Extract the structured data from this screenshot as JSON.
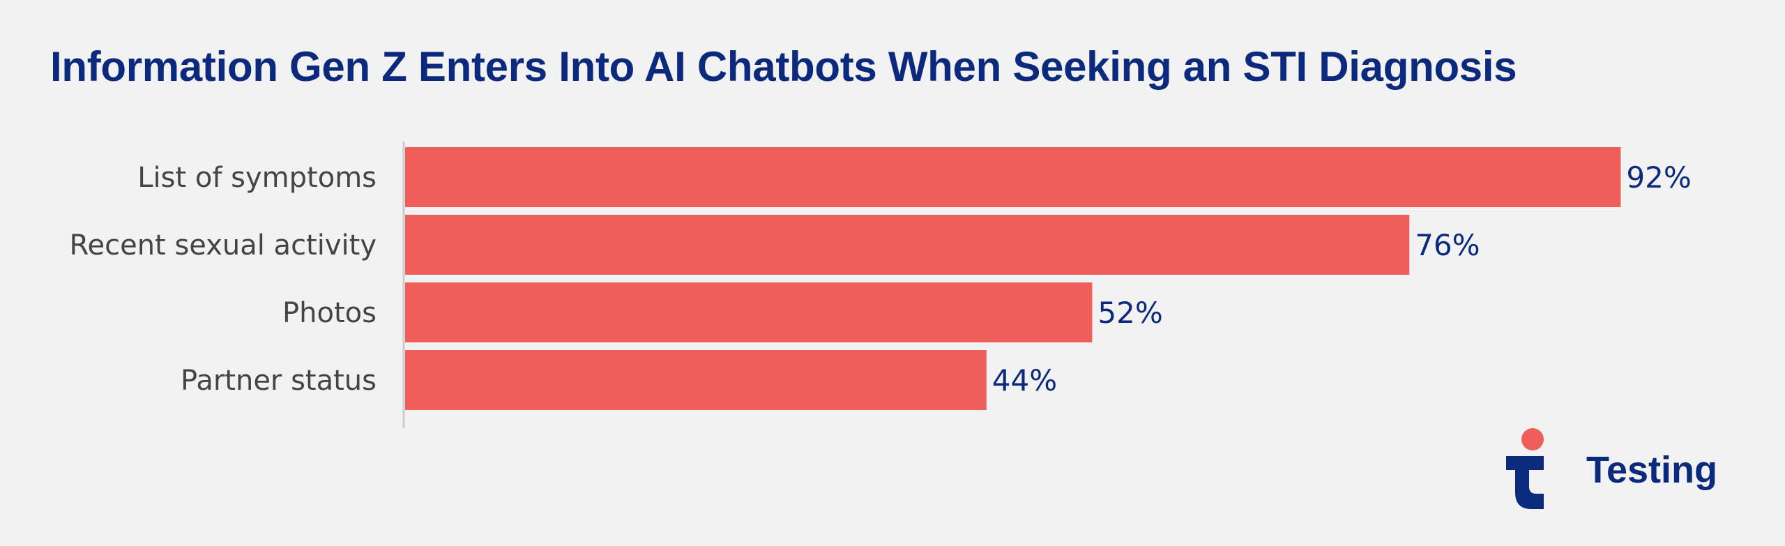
{
  "title": "Information Gen Z Enters Into AI Chatbots When Seeking an STI Diagnosis",
  "brand": {
    "name": "Testing",
    "icon": "testing-logo-icon"
  },
  "colors": {
    "background": "#f2f2f2",
    "bar": "#f05e5b",
    "title": "#0b2a7e",
    "value_label": "#0b2a7e",
    "category_label": "#444444",
    "axis": "#cccccc"
  },
  "chart_data": {
    "type": "bar",
    "orientation": "horizontal",
    "title": "Information Gen Z Enters Into AI Chatbots When Seeking an STI Diagnosis",
    "categories": [
      "List of symptoms",
      "Recent sexual activity",
      "Photos",
      "Partner status"
    ],
    "values": [
      92,
      76,
      52,
      44
    ],
    "value_labels": [
      "92%",
      "76%",
      "52%",
      "44%"
    ],
    "unit": "%",
    "xlabel": "",
    "ylabel": "",
    "xlim": [
      0,
      100
    ],
    "grid": false,
    "legend": "none"
  }
}
